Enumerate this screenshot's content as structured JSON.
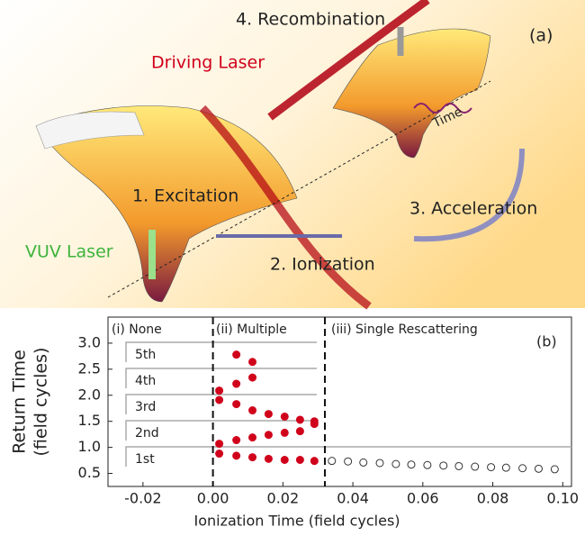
{
  "illustration": {
    "panel": "(a)",
    "driving_laser": "Driving Laser",
    "vuv_laser": "VUV Laser",
    "time": "Time",
    "steps": [
      "1. Excitation",
      "2. Ionization",
      "3. Acceleration",
      "4. Recombination"
    ]
  },
  "chart_data": {
    "type": "scatter",
    "panel": "(b)",
    "xlabel": "Ionization Time (field cycles)",
    "ylabel": [
      "Return Time",
      "(field cycles)"
    ],
    "regions": [
      "(i) None",
      "(ii) Multiple",
      "(iii) Single Rescattering"
    ],
    "boundaries": [
      0,
      0.032
    ],
    "orders": [
      "5th",
      "4th",
      "3rd",
      "2nd",
      "1st"
    ],
    "xlim": [
      -0.03,
      0.1025
    ],
    "ylim": [
      0.25,
      3.5
    ],
    "xticks": [
      {
        "value": -0.02,
        "label": "-0.02"
      },
      {
        "value": 0,
        "label": "0.00"
      },
      {
        "value": 0.02,
        "label": "0.02"
      },
      {
        "value": 0.04,
        "label": "0.04"
      },
      {
        "value": 0.06,
        "label": "0.06"
      },
      {
        "value": 0.08,
        "label": "0.08"
      },
      {
        "value": 0.1,
        "label": "0.10"
      }
    ],
    "yticks": [
      {
        "value": 0.5,
        "label": "0.5"
      },
      {
        "value": 1,
        "label": "1.0"
      },
      {
        "value": 1.5,
        "label": "1.5"
      },
      {
        "value": 2,
        "label": "2.0"
      },
      {
        "value": 2.5,
        "label": "2.5"
      },
      {
        "value": 3,
        "label": "3.0"
      }
    ],
    "series": [
      {
        "color": "#d0021b",
        "filled": true,
        "x": [
          0.0018,
          0.0018,
          0.0018,
          0.0018,
          0.0067,
          0.0067,
          0.0067,
          0.0067,
          0.0067,
          0.0113,
          0.0113,
          0.0113,
          0.0113,
          0.0113,
          0.0159,
          0.0159,
          0.0159,
          0.0205,
          0.0205,
          0.0205,
          0.0249,
          0.0249,
          0.0249,
          0.029,
          0.029,
          0.029
        ],
        "values": [
          0.88,
          1.07,
          1.91,
          2.09,
          0.84,
          1.14,
          1.83,
          2.22,
          2.78,
          0.81,
          1.19,
          1.71,
          2.34,
          2.64,
          0.78,
          1.24,
          1.64,
          0.76,
          1.28,
          1.59,
          0.76,
          1.31,
          1.53,
          0.74,
          1.45,
          1.5
        ]
      },
      {
        "color": "#333333",
        "filled": false,
        "x": [
          0.034,
          0.0386,
          0.043,
          0.0477,
          0.0523,
          0.0567,
          0.0613,
          0.0659,
          0.0703,
          0.0749,
          0.0795,
          0.0838,
          0.0885,
          0.0931,
          0.0977
        ],
        "values": [
          0.74,
          0.73,
          0.71,
          0.7,
          0.68,
          0.67,
          0.66,
          0.65,
          0.64,
          0.63,
          0.62,
          0.61,
          0.6,
          0.59,
          0.58
        ]
      }
    ]
  }
}
